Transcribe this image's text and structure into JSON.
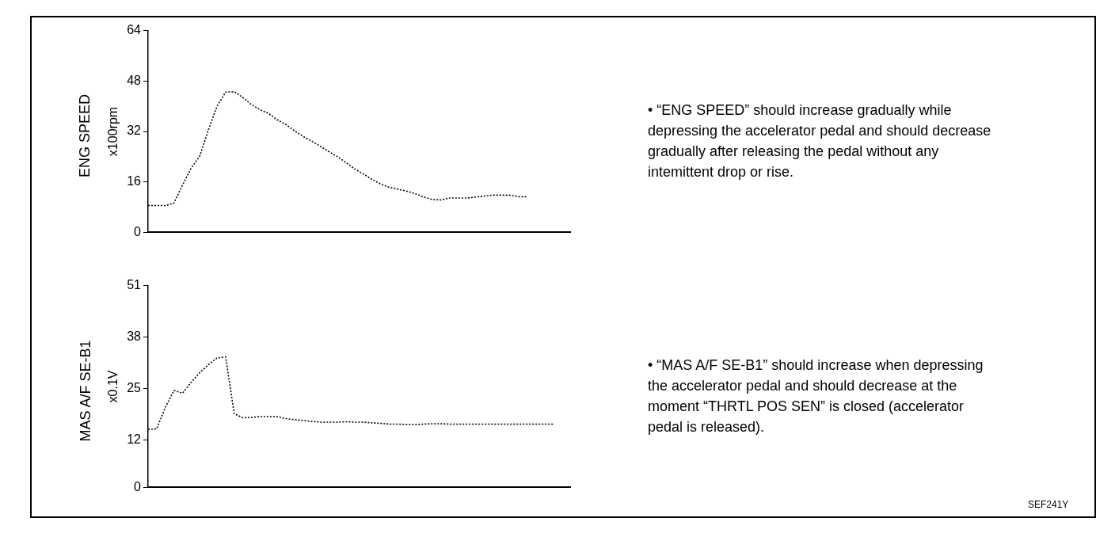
{
  "chart_data": [
    {
      "type": "line",
      "title": "ENG SPEED",
      "ylabel": "x100rpm",
      "categories": [
        null,
        null,
        null,
        null,
        null,
        null,
        null,
        null,
        null,
        null,
        null,
        null,
        null,
        null,
        null,
        null,
        null,
        null,
        null,
        null,
        null,
        null,
        null,
        null,
        null,
        null,
        null,
        null,
        null,
        null,
        null,
        null,
        null,
        null,
        null,
        null,
        null,
        null,
        null,
        null,
        null,
        null,
        null,
        null,
        null,
        null,
        null,
        null,
        null,
        null
      ],
      "series": [
        {
          "color": "#000000",
          "values": [
            8.5,
            8.5,
            8.5,
            9.3,
            15,
            20.4,
            24.2,
            32.5,
            40,
            44.5,
            44.6,
            42.8,
            40.5,
            38.9,
            37.7,
            35.7,
            34.2,
            32.2,
            30.4,
            28.9,
            27.3,
            25.6,
            24,
            22.1,
            20.1,
            18.5,
            16.8,
            15.3,
            14.3,
            13.7,
            13.1,
            12.3,
            11.2,
            10.4,
            10.3,
            10.9,
            10.9,
            10.9,
            11.2,
            11.5,
            11.8,
            11.8,
            11.8,
            11.3,
            11.3,
            null,
            null,
            null,
            null,
            null
          ]
        }
      ],
      "ylim": [
        0,
        64
      ],
      "yticks": [
        0,
        16,
        32,
        48,
        64
      ],
      "tick_labels": "y",
      "grid": false,
      "legend": false,
      "marker": "none",
      "line_style": "dotted",
      "annotations": [
        "• “ENG SPEED” should increase gradually while depressing the accelerator pedal and should decrease gradually after releasing the pedal without any intemittent drop or rise."
      ]
    },
    {
      "type": "line",
      "title": "MAS A/F SE-B1",
      "ylabel": "x0.1V",
      "categories": [
        null,
        null,
        null,
        null,
        null,
        null,
        null,
        null,
        null,
        null,
        null,
        null,
        null,
        null,
        null,
        null,
        null,
        null,
        null,
        null,
        null,
        null,
        null,
        null,
        null,
        null,
        null,
        null,
        null,
        null,
        null,
        null,
        null,
        null,
        null,
        null,
        null,
        null,
        null,
        null,
        null,
        null,
        null,
        null,
        null,
        null,
        null,
        null,
        null,
        null
      ],
      "series": [
        {
          "color": "#000000",
          "values": [
            14.7,
            14.8,
            20.2,
            24.5,
            23.8,
            26.6,
            29,
            31,
            32.7,
            33,
            18.6,
            17.6,
            17.7,
            17.9,
            17.9,
            17.9,
            17.4,
            17.1,
            16.9,
            16.7,
            16.5,
            16.5,
            16.5,
            16.6,
            16.5,
            16.5,
            16.3,
            16.2,
            16,
            16,
            15.9,
            15.9,
            16,
            16.1,
            16.1,
            16,
            16,
            16,
            16,
            16,
            16,
            16,
            16,
            16,
            16,
            16,
            16,
            16,
            null,
            null
          ]
        }
      ],
      "ylim": [
        0,
        51
      ],
      "yticks": [
        0,
        12,
        25,
        38,
        51
      ],
      "tick_labels": "y",
      "grid": false,
      "legend": false,
      "marker": "none",
      "line_style": "dotted",
      "annotations": [
        "• “MAS A/F SE-B1” should increase when depressing the accelerator pedal and should decrease at the moment “THRTL POS SEN” is closed (accelerator pedal is released).",
        "SEF241Y"
      ]
    }
  ]
}
